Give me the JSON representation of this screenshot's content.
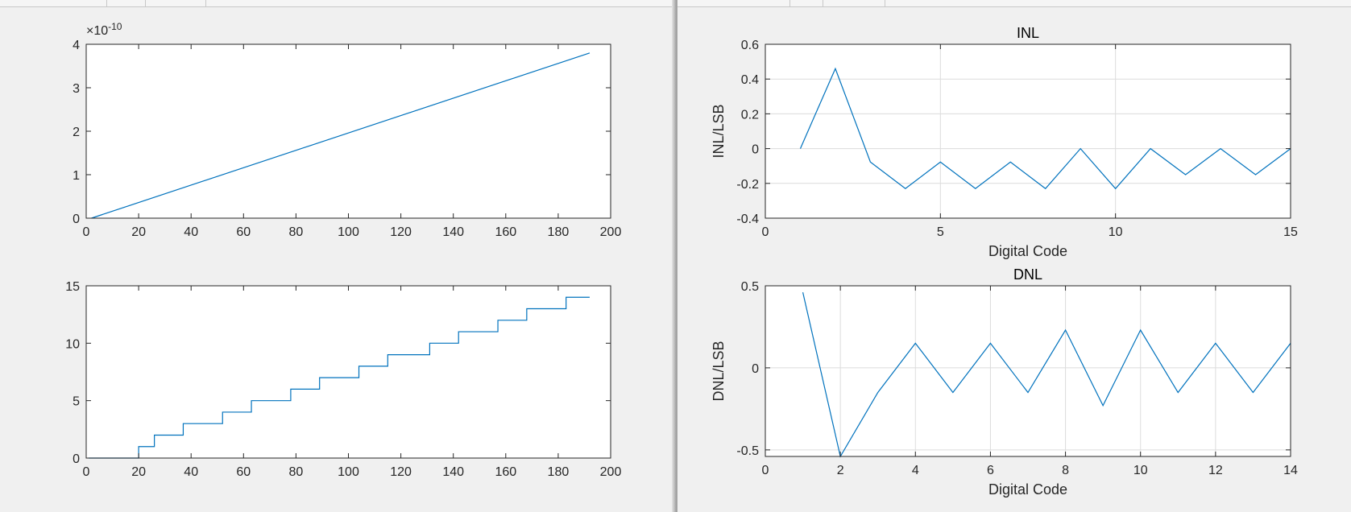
{
  "colors": {
    "line": "#0072bd",
    "axis": "#262626",
    "grid": "#dcdcdc",
    "background": "#f0f0f0"
  },
  "chart_data": [
    {
      "type": "line",
      "title": "",
      "xlabel": "",
      "ylabel": "",
      "exponent_label": "×10",
      "exponent_power": "-10",
      "xlim": [
        0,
        200
      ],
      "ylim": [
        0,
        4
      ],
      "xticks": [
        0,
        20,
        40,
        60,
        80,
        100,
        120,
        140,
        160,
        180,
        200
      ],
      "yticks": [
        0,
        1,
        2,
        3,
        4
      ],
      "grid": false,
      "series": [
        {
          "x": [
            2,
            192
          ],
          "y": [
            0,
            3.8
          ]
        }
      ]
    },
    {
      "type": "line",
      "title": "",
      "xlabel": "",
      "ylabel": "",
      "xlim": [
        0,
        200
      ],
      "ylim": [
        0,
        15
      ],
      "xticks": [
        0,
        20,
        40,
        60,
        80,
        100,
        120,
        140,
        160,
        180,
        200
      ],
      "yticks": [
        0,
        5,
        10,
        15
      ],
      "grid": false,
      "series": [
        {
          "x": [
            1,
            20,
            20,
            21,
            21,
            26,
            26,
            27,
            27,
            37,
            37,
            38,
            38,
            52,
            52,
            53,
            53,
            63,
            63,
            64,
            64,
            78,
            78,
            79,
            79,
            89,
            89,
            90,
            90,
            104,
            104,
            105,
            105,
            115,
            115,
            116,
            116,
            131,
            131,
            132,
            132,
            142,
            142,
            143,
            143,
            157,
            157,
            158,
            158,
            168,
            168,
            169,
            169,
            183,
            183,
            184,
            184,
            192
          ],
          "y": [
            0,
            0,
            1,
            1,
            1,
            1,
            2,
            2,
            2,
            2,
            3,
            3,
            3,
            3,
            4,
            4,
            4,
            4,
            5,
            5,
            5,
            5,
            6,
            6,
            6,
            6,
            7,
            7,
            7,
            7,
            8,
            8,
            8,
            8,
            9,
            9,
            9,
            9,
            10,
            10,
            10,
            10,
            11,
            11,
            11,
            11,
            12,
            12,
            12,
            12,
            13,
            13,
            13,
            13,
            14,
            14,
            14,
            14
          ]
        }
      ]
    },
    {
      "type": "line",
      "title": "INL",
      "xlabel": "Digital Code",
      "ylabel": "INL/LSB",
      "xlim": [
        0,
        15
      ],
      "ylim": [
        -0.4,
        0.6
      ],
      "xticks": [
        0,
        5,
        10,
        15
      ],
      "xtick_labels": [
        "0",
        "5",
        "10",
        "15"
      ],
      "yticks": [
        -0.4,
        -0.2,
        0,
        0.2,
        0.4,
        0.6
      ],
      "ytick_labels": [
        "-0.4",
        "-0.2",
        "0",
        "0.2",
        "0.4",
        "0.6"
      ],
      "grid": true,
      "series": [
        {
          "x": [
            1,
            2,
            3,
            4,
            5,
            6,
            7,
            8,
            9,
            10,
            11,
            12,
            13,
            14,
            15
          ],
          "y": [
            0,
            0.46,
            -0.077,
            -0.23,
            -0.077,
            -0.23,
            -0.077,
            -0.23,
            0,
            -0.23,
            0,
            -0.15,
            0,
            -0.15,
            0
          ]
        }
      ]
    },
    {
      "type": "line",
      "title": "DNL",
      "xlabel": "Digital Code",
      "ylabel": "DNL/LSB",
      "xlim": [
        0,
        14
      ],
      "ylim": [
        -0.54,
        0.5
      ],
      "xticks": [
        0,
        2,
        4,
        6,
        8,
        10,
        12,
        14
      ],
      "xtick_labels": [
        "0",
        "2",
        "4",
        "6",
        "8",
        "10",
        "12",
        "14"
      ],
      "yticks": [
        -0.5,
        0,
        0.5
      ],
      "ytick_labels": [
        "-0.5",
        "0",
        "0.5"
      ],
      "grid": true,
      "series": [
        {
          "x": [
            1,
            2,
            3,
            4,
            5,
            6,
            7,
            8,
            9,
            10,
            11,
            12,
            13,
            14
          ],
          "y": [
            0.46,
            -0.54,
            -0.15,
            0.15,
            -0.15,
            0.15,
            -0.15,
            0.23,
            -0.23,
            0.23,
            -0.15,
            0.15,
            -0.15,
            0.15
          ]
        }
      ]
    }
  ]
}
